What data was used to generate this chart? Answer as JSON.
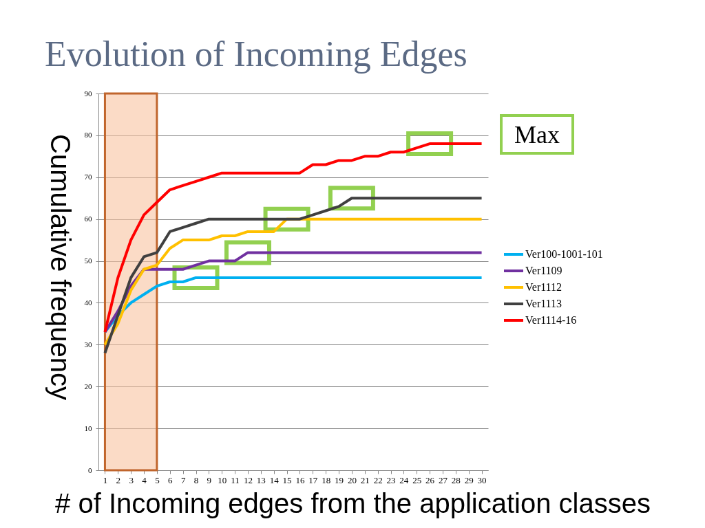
{
  "chart_data": {
    "type": "line",
    "title": "Evolution of Incoming Edges",
    "xlabel": "# of Incoming edges from the application classes",
    "ylabel": "Cumulative frequency",
    "x": [
      1,
      2,
      3,
      4,
      5,
      6,
      7,
      8,
      9,
      10,
      11,
      12,
      13,
      14,
      15,
      16,
      17,
      18,
      19,
      20,
      21,
      22,
      23,
      24,
      25,
      26,
      27,
      28,
      29,
      30
    ],
    "xlim": [
      0.5,
      30.5
    ],
    "xticks": [
      1,
      2,
      3,
      4,
      5,
      6,
      7,
      8,
      9,
      10,
      11,
      12,
      13,
      14,
      15,
      16,
      17,
      18,
      19,
      20,
      21,
      22,
      23,
      24,
      25,
      26,
      27,
      28,
      29,
      30
    ],
    "ylim": [
      0,
      90
    ],
    "yticks": [
      0,
      10,
      20,
      30,
      40,
      50,
      60,
      70,
      80,
      90
    ],
    "grid": "y",
    "legend": "right",
    "marker": "none",
    "line_style": "solid",
    "bands": [
      {
        "axis": "x",
        "from": 1,
        "to": 5,
        "color": "#f8c3a0"
      }
    ],
    "annotations": [
      "Max"
    ],
    "series": [
      {
        "name": "Ver100-1001-101",
        "color": "#00b0f0",
        "values": [
          33,
          37,
          40,
          42,
          44,
          45,
          45,
          46,
          46,
          46,
          46,
          46,
          46,
          46,
          46,
          46,
          46,
          46,
          46,
          46,
          46,
          46,
          46,
          46,
          46,
          46,
          46,
          46,
          46,
          46
        ]
      },
      {
        "name": "Ver1109",
        "color": "#7030a0",
        "values": [
          33,
          38,
          44,
          48,
          48,
          48,
          48,
          49,
          50,
          50,
          50,
          52,
          52,
          52,
          52,
          52,
          52,
          52,
          52,
          52,
          52,
          52,
          52,
          52,
          52,
          52,
          52,
          52,
          52,
          52
        ]
      },
      {
        "name": "Ver1112",
        "color": "#ffc000",
        "values": [
          30,
          35,
          43,
          48,
          49,
          53,
          55,
          55,
          55,
          56,
          56,
          57,
          57,
          57,
          60,
          60,
          60,
          60,
          60,
          60,
          60,
          60,
          60,
          60,
          60,
          60,
          60,
          60,
          60,
          60
        ]
      },
      {
        "name": "Ver1113",
        "color": "#404040",
        "values": [
          28,
          37,
          46,
          51,
          52,
          57,
          58,
          59,
          60,
          60,
          60,
          60,
          60,
          60,
          60,
          60,
          61,
          62,
          63,
          65,
          65,
          65,
          65,
          65,
          65,
          65,
          65,
          65,
          65,
          65
        ]
      },
      {
        "name": "Ver1114-16",
        "color": "#ff0000",
        "values": [
          33,
          46,
          55,
          61,
          64,
          67,
          68,
          69,
          70,
          71,
          71,
          71,
          71,
          71,
          71,
          71,
          73,
          73,
          74,
          74,
          75,
          75,
          76,
          76,
          77,
          78,
          78,
          78,
          78,
          78
        ]
      }
    ]
  }
}
